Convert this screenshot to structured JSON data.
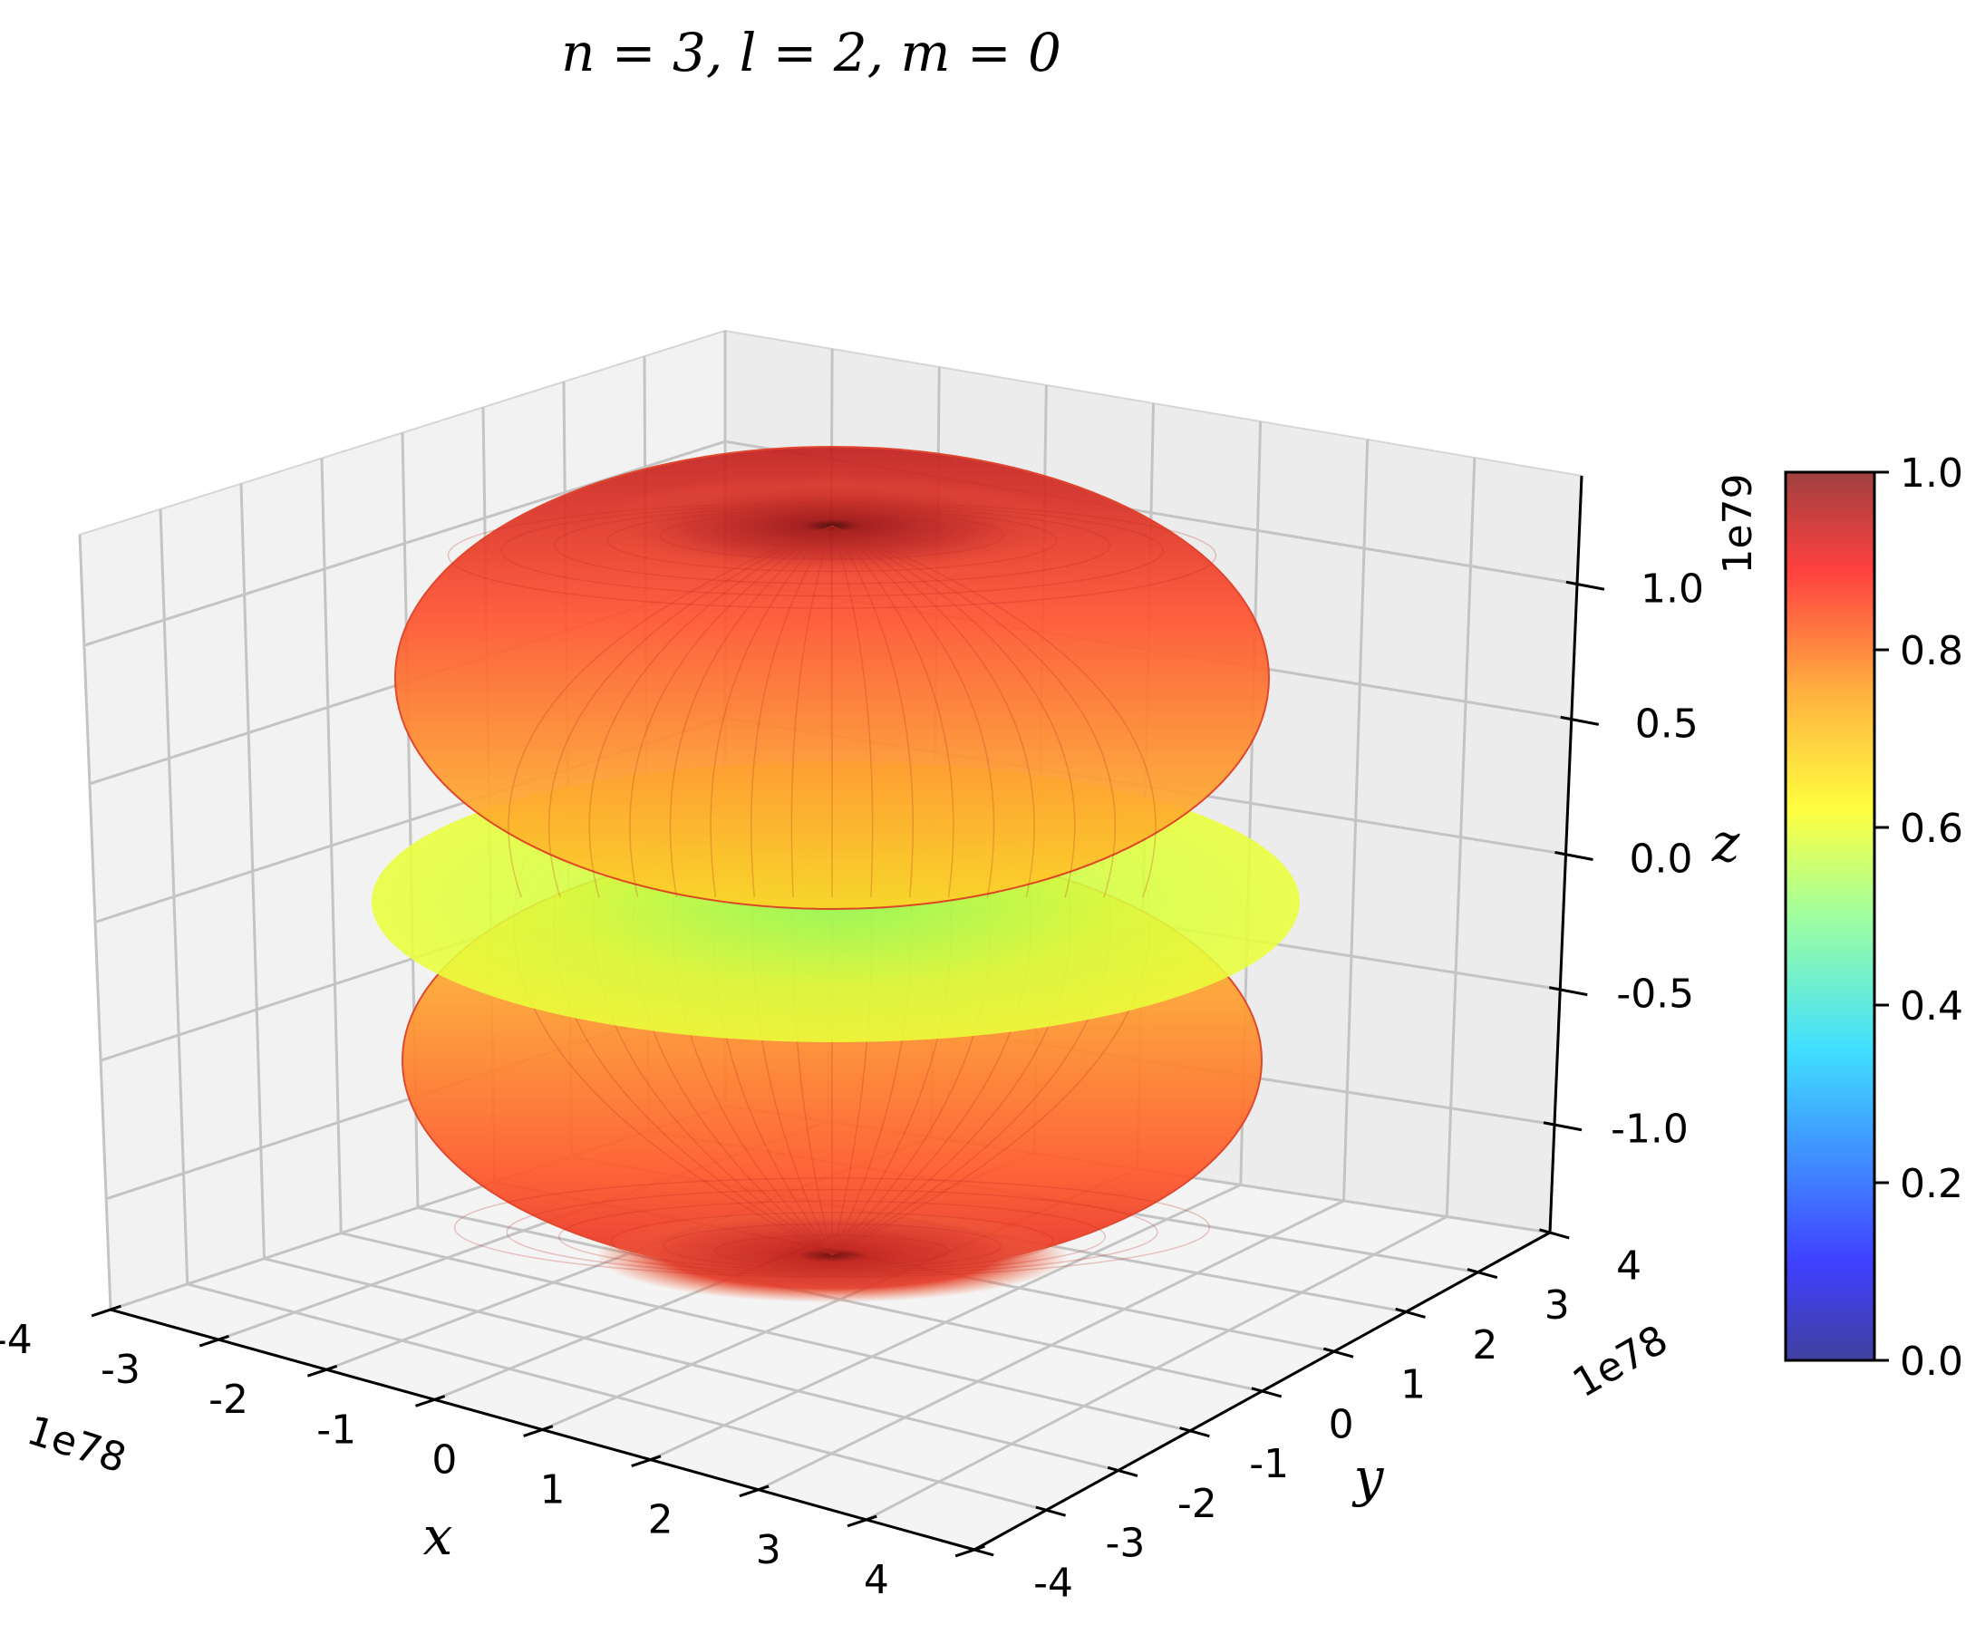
{
  "chart_data": {
    "type": "surface3d",
    "title": "n = 3, l = 2, m = 0",
    "xlabel": "x",
    "ylabel": "y",
    "zlabel": "z",
    "x_ticks": [
      "-4",
      "-3",
      "-2",
      "-1",
      "0",
      "1",
      "2",
      "3",
      "4"
    ],
    "y_ticks": [
      "-4",
      "-3",
      "-2",
      "-1",
      "0",
      "1",
      "2",
      "3",
      "4"
    ],
    "z_ticks": [
      "-1.0",
      "-0.5",
      "0.0",
      "0.5",
      "1.0"
    ],
    "x_offset": "1e78",
    "y_offset": "1e78",
    "colorbar_ticks": [
      "0.0",
      "0.2",
      "0.4",
      "0.6",
      "0.8",
      "1.0"
    ],
    "colorbar_offset": "1e79",
    "colormap": "jet",
    "colormap_stops": [
      "#00007f",
      "#0000ff",
      "#007fff",
      "#00ffff",
      "#7fff7f",
      "#ffff00",
      "#ff7f00",
      "#ff0000",
      "#7f0000"
    ],
    "xlim": [
      -4,
      4
    ],
    "ylim": [
      -4,
      4
    ],
    "zlim": [
      -1.4,
      1.4
    ],
    "surface": "orbital lobes: upper lobe, equatorial disk, lower lobe",
    "grid": true
  }
}
